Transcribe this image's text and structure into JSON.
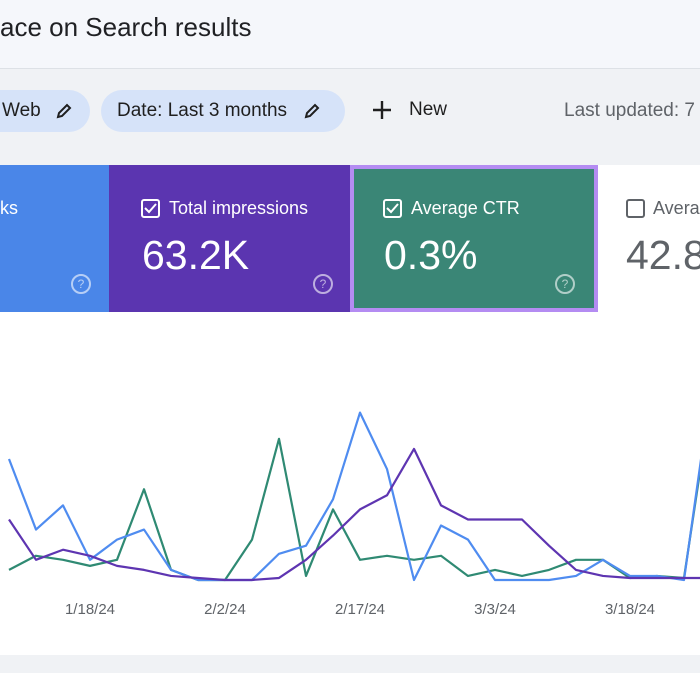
{
  "header": {
    "title": "ace on Search results"
  },
  "filters": {
    "chips": [
      "Web",
      "Date: Last 3 months"
    ],
    "new": "New",
    "last_updated": "Last updated: 7"
  },
  "metrics": [
    {
      "label": "ks"
    },
    {
      "label": "Total impressions",
      "value": "63.2K"
    },
    {
      "label": "Average CTR",
      "value": "0.3%"
    },
    {
      "label": "Averag",
      "value": "42.8"
    }
  ],
  "chart_data": {
    "type": "line",
    "x": [
      "1/9/24",
      "1/12/24",
      "1/15/24",
      "1/18/24",
      "1/21/24",
      "1/24/24",
      "1/27/24",
      "1/30/24",
      "2/2/24",
      "2/5/24",
      "2/8/24",
      "2/11/24",
      "2/14/24",
      "2/17/24",
      "2/20/24",
      "2/23/24",
      "2/26/24",
      "2/29/24",
      "3/3/24",
      "3/6/24",
      "3/9/24",
      "3/12/24",
      "3/15/24",
      "3/18/24",
      "3/21/24",
      "3/24/24",
      "3/27/24"
    ],
    "xticks": [
      "1/18/24",
      "2/2/24",
      "2/17/24",
      "3/3/24",
      "3/18/24"
    ],
    "ylim": [
      0,
      120
    ],
    "series": [
      {
        "color": "#2f8a73",
        "values": [
          6,
          13,
          11,
          8,
          11,
          46,
          6,
          1,
          1,
          21,
          71,
          3,
          36,
          11,
          13,
          11,
          13,
          3,
          6,
          3,
          6,
          11,
          11,
          2,
          3,
          2,
          91
        ]
      },
      {
        "color": "#4f8cf0",
        "values": [
          61,
          26,
          38,
          11,
          21,
          26,
          6,
          1,
          1,
          1,
          14,
          18,
          41,
          84,
          56,
          1,
          28,
          21,
          1,
          1,
          1,
          3,
          11,
          3,
          3,
          1,
          96
        ]
      },
      {
        "color": "#5e35b1",
        "values": [
          31,
          11,
          16,
          13,
          8,
          6,
          3,
          2,
          1,
          1,
          2,
          11,
          23,
          36,
          43,
          66,
          38,
          31,
          31,
          31,
          18,
          6,
          3,
          2,
          2,
          2,
          2
        ]
      }
    ]
  }
}
